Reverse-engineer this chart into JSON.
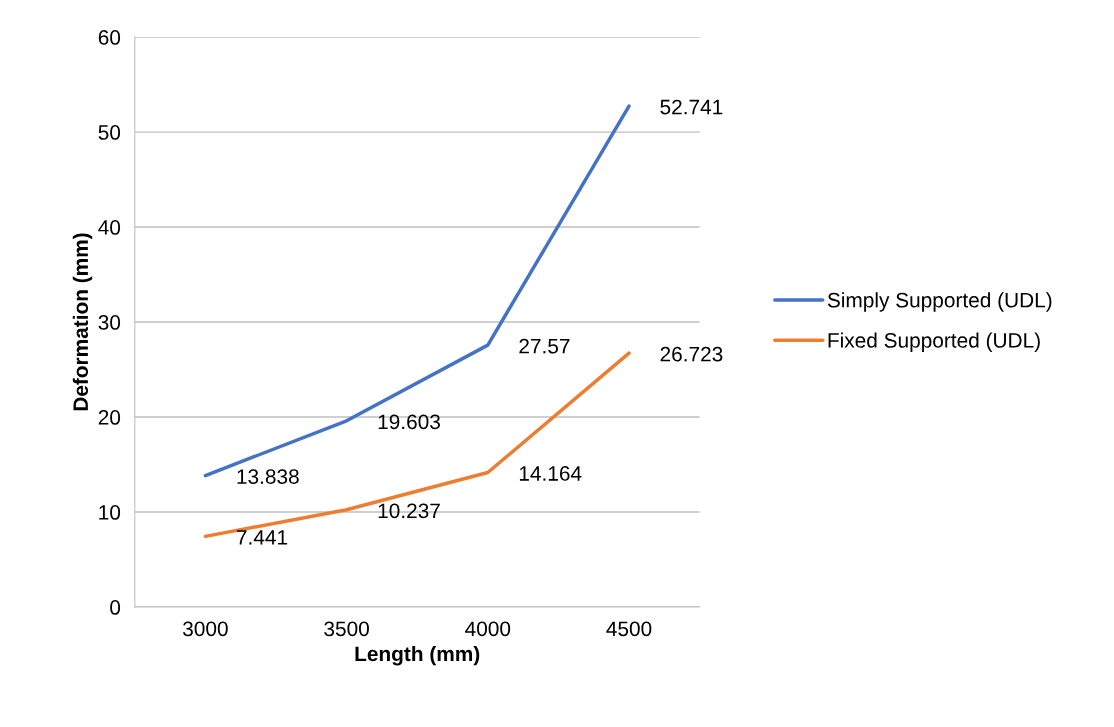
{
  "chart_data": {
    "type": "line",
    "xlabel": "Length (mm)",
    "ylabel": "Deformation (mm)",
    "categories": [
      "3000",
      "3500",
      "4000",
      "4500"
    ],
    "series": [
      {
        "name": "Simply Supported (UDL)",
        "color": "#4472c4",
        "values": [
          13.838,
          19.603,
          27.57,
          52.741
        ]
      },
      {
        "name": "Fixed Supported (UDL)",
        "color": "#ed7d31",
        "values": [
          7.441,
          10.237,
          14.164,
          26.723
        ]
      }
    ],
    "ylim": [
      0,
      60
    ],
    "yticks": [
      0,
      10,
      20,
      30,
      40,
      50,
      60
    ],
    "grid": "y",
    "legend": "right",
    "data_labels": true,
    "marker": "none",
    "line_style": "solid"
  }
}
